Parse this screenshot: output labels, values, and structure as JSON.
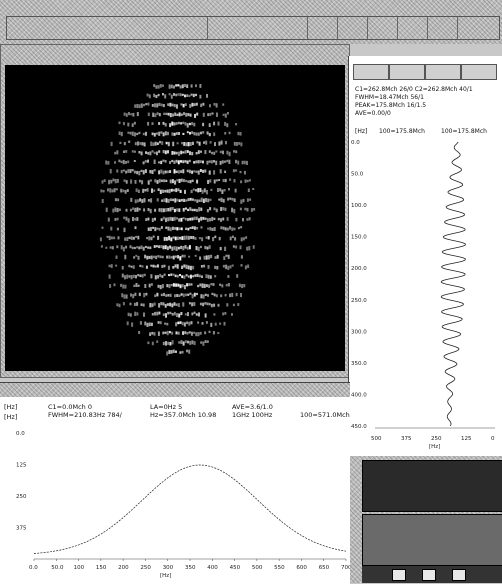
{
  "right_panel": {
    "tabs": [
      "",
      "",
      "",
      ""
    ],
    "info": [
      "C1=262.8Mch  26/0      C2=262.8Mch  40/1",
      "FWHM=18.47Mch  56/1",
      "PEAK=175.8Mch  16/1.5",
      "AVE=0.00/0"
    ],
    "col_headers": [
      "[Hz]",
      "100=175.8Mch",
      "100=175.8Mch"
    ],
    "y_ticks": [
      "0.0",
      "50.0",
      "100.0",
      "150.0",
      "200.0",
      "250.0",
      "300.0",
      "350.0",
      "400.0",
      "450.0"
    ],
    "x_ticks": [
      "500",
      "375",
      "250",
      "125",
      "0"
    ],
    "x_label": "[Hz]"
  },
  "bottom_panel": {
    "info_left": [
      "C1=0.0Mch  0",
      "FWHM=210.83Hz  784/"
    ],
    "info_mid": [
      "LA=0Hz  5",
      "Hz=357.0Mch  10.98"
    ],
    "info_right": [
      "AVE=3.6/1.0",
      "1GHz  100Hz"
    ],
    "info_far": [
      "100=571.0Mch"
    ],
    "y_unit": "[Hz]",
    "y_sub": "[Hz]",
    "y_ticks": [
      "0.0",
      "125",
      "250",
      "375",
      ""
    ],
    "x_ticks": [
      "0.0",
      "50.0",
      "100",
      "150",
      "200",
      "250",
      "300",
      "350",
      "400",
      "450",
      "500",
      "550",
      "600",
      "650",
      "700"
    ],
    "x_label": "[Hz]"
  },
  "colors": {
    "image_bg": "#000000",
    "fringe": "#ffffff",
    "plot_line": "#222222",
    "panel_bg": "#ffffff",
    "chrome": "#bdbdbd"
  }
}
